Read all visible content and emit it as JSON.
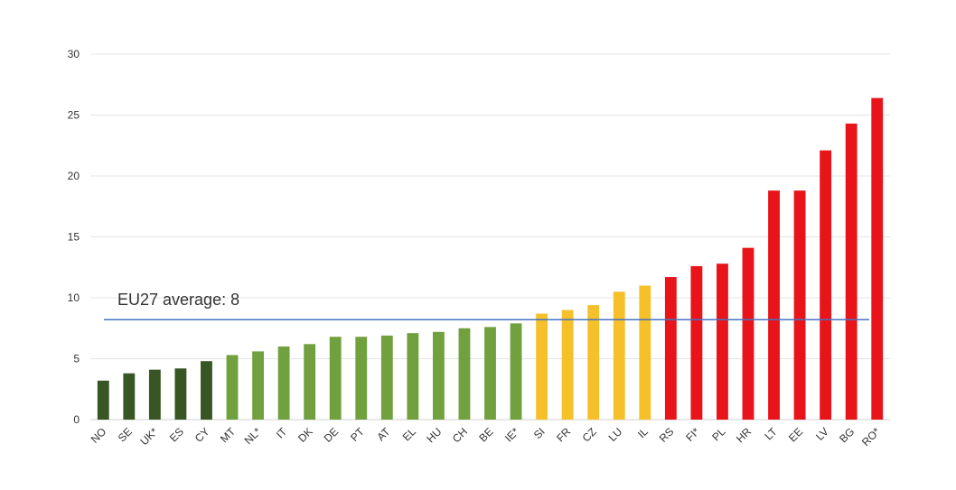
{
  "chart_data": {
    "type": "bar",
    "categories": [
      "NO",
      "SE",
      "UK*",
      "ES",
      "CY",
      "MT",
      "NL*",
      "IT",
      "DK",
      "DE",
      "PT",
      "AT",
      "EL",
      "HU",
      "CH",
      "BE",
      "IE*",
      "SI",
      "FR",
      "CZ",
      "LU",
      "IL",
      "RS",
      "FI*",
      "PL",
      "HR",
      "LT",
      "EE",
      "LV",
      "BG",
      "RO*"
    ],
    "values": [
      3.2,
      3.8,
      4.1,
      4.2,
      4.8,
      5.3,
      5.6,
      6.0,
      6.2,
      6.8,
      6.8,
      6.9,
      7.1,
      7.2,
      7.5,
      7.6,
      7.9,
      8.7,
      9.0,
      9.4,
      10.5,
      11.0,
      11.7,
      12.6,
      12.8,
      14.1,
      18.8,
      18.8,
      22.1,
      24.3,
      26.4
    ],
    "bar_colors": [
      "#375623",
      "#375623",
      "#375623",
      "#375623",
      "#375623",
      "#70a13e",
      "#70a13e",
      "#70a13e",
      "#70a13e",
      "#70a13e",
      "#70a13e",
      "#70a13e",
      "#70a13e",
      "#70a13e",
      "#70a13e",
      "#70a13e",
      "#70a13e",
      "#f5c02a",
      "#f5c02a",
      "#f5c02a",
      "#f5c02a",
      "#f5c02a",
      "#e8141a",
      "#e8141a",
      "#e8141a",
      "#e8141a",
      "#e8141a",
      "#e8141a",
      "#e8141a",
      "#e8141a",
      "#e8141a"
    ],
    "ylim": [
      0,
      30
    ],
    "yticks": [
      0,
      5,
      10,
      15,
      20,
      25,
      30
    ],
    "grid": true,
    "reference_line": {
      "value": 8.2,
      "label": "EU27 average: 8",
      "color": "#4472c4"
    },
    "title": "",
    "xlabel": "",
    "ylabel": ""
  }
}
